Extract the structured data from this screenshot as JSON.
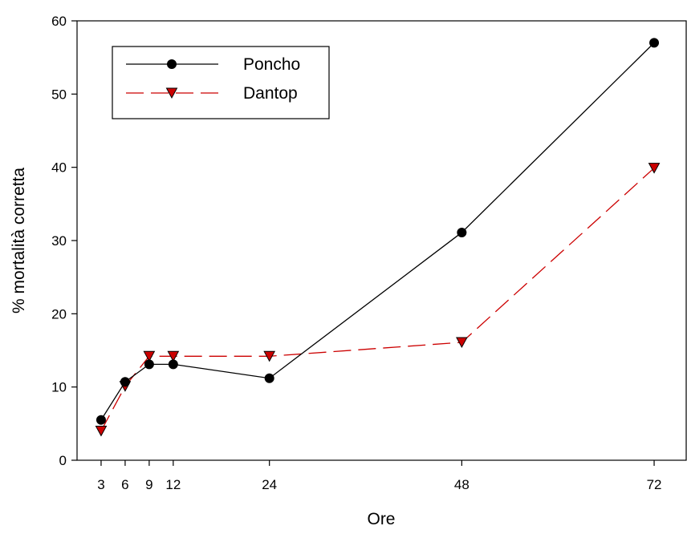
{
  "chart_data": {
    "type": "line",
    "xlabel": "Ore",
    "ylabel": "% mortalità corretta",
    "xlim": [
      0,
      76
    ],
    "ylim": [
      0,
      60
    ],
    "xticks": [
      3,
      6,
      9,
      12,
      24,
      48,
      72
    ],
    "yticks": [
      0,
      10,
      20,
      30,
      40,
      50,
      60
    ],
    "x": [
      3,
      6,
      9,
      12,
      24,
      48,
      72
    ],
    "series": [
      {
        "name": "Poncho",
        "values": [
          5.5,
          10.7,
          13.1,
          13.1,
          11.2,
          31.1,
          57.0
        ],
        "color": "#000000",
        "line_style": "solid",
        "marker": "circle",
        "marker_color": "#000000"
      },
      {
        "name": "Dantop",
        "values": [
          4.0,
          10.1,
          14.2,
          14.2,
          14.2,
          16.1,
          39.9
        ],
        "color": "#cc0000",
        "line_style": "dashed",
        "marker": "triangle-down",
        "marker_color": "#cc0000"
      }
    ],
    "legend": {
      "position": "top-left"
    },
    "grid": false
  }
}
